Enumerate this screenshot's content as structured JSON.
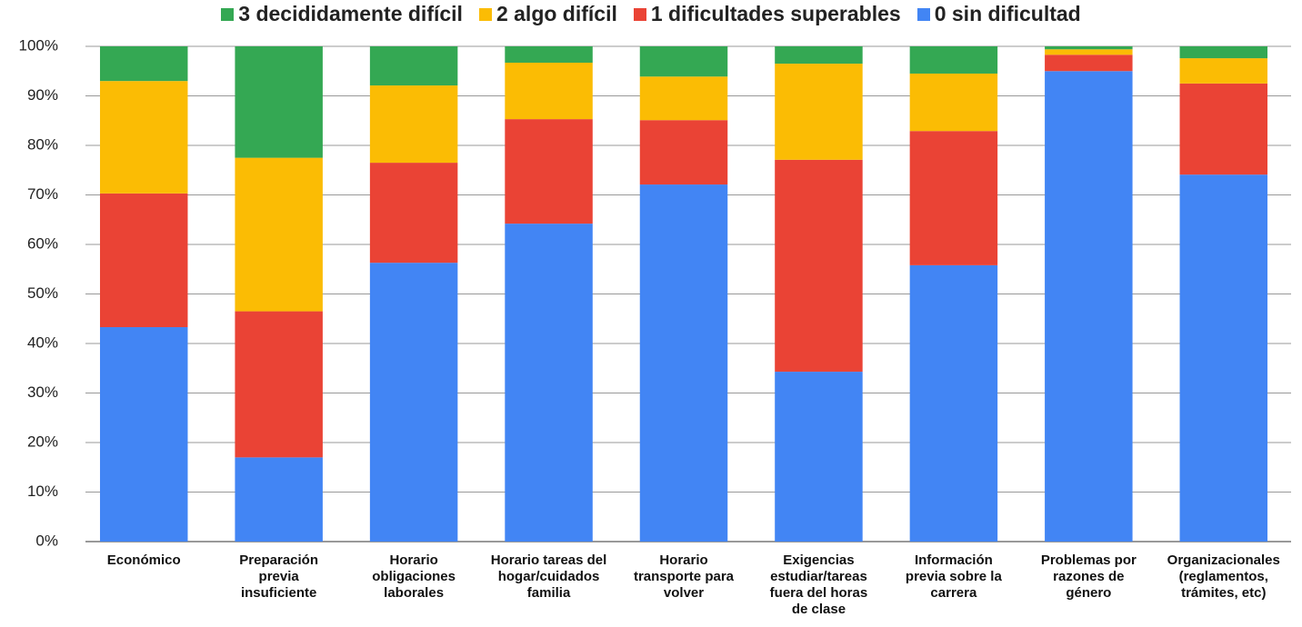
{
  "chart_data": {
    "type": "stacked_bar",
    "categories": [
      "Económico",
      "Preparación previa insuficiente",
      "Horario obligaciones laborales",
      "Horario tareas del hogar/cuidados familia",
      "Horario transporte para volver",
      "Exigencias estudiar/tareas fuera del horas de clase",
      "Información previa sobre la carrera",
      "Problemas por razones de género",
      "Organizacionales (reglamentos, trámites, etc)"
    ],
    "series": [
      {
        "name": "3 decididamente difícil",
        "color": "#34a853",
        "values": [
          7,
          22.5,
          7.9,
          3.3,
          6.1,
          3.5,
          5.5,
          0.6,
          2.4
        ]
      },
      {
        "name": "2 algo difícil",
        "color": "#fbbc04",
        "values": [
          22.7,
          31,
          15.6,
          11.4,
          8.8,
          19.4,
          11.6,
          1.1,
          5.1
        ]
      },
      {
        "name": "1 dificultades superables",
        "color": "#ea4335",
        "values": [
          27,
          29.5,
          20.2,
          21.1,
          13,
          42.8,
          27.1,
          3.3,
          18.4
        ]
      },
      {
        "name": "0 sin dificultad",
        "color": "#4285f4",
        "values": [
          43.3,
          17,
          56.3,
          64.2,
          72.1,
          34.3,
          55.8,
          95,
          74.1
        ]
      }
    ],
    "ylim": [
      0,
      100
    ],
    "yticks": [
      {
        "value": 0,
        "label": "0%"
      },
      {
        "value": 10,
        "label": "10%"
      },
      {
        "value": 20,
        "label": "20%"
      },
      {
        "value": 30,
        "label": "30%"
      },
      {
        "value": 40,
        "label": "40%"
      },
      {
        "value": 50,
        "label": "50%"
      },
      {
        "value": 60,
        "label": "60%"
      },
      {
        "value": 70,
        "label": "70%"
      },
      {
        "value": 80,
        "label": "80%"
      },
      {
        "value": 90,
        "label": "90%"
      },
      {
        "value": 100,
        "label": "100%"
      }
    ],
    "grid": true,
    "legend": "top"
  }
}
